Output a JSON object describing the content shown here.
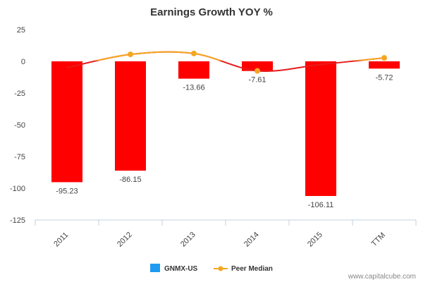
{
  "chart_data": {
    "type": "bar",
    "title": "Earnings Growth YOY %",
    "xlabel": "",
    "ylabel": "",
    "categories": [
      "2011",
      "2012",
      "2013",
      "2014",
      "2015",
      "TTM"
    ],
    "ylim": [
      -125,
      25
    ],
    "yticks": [
      25,
      0,
      -25,
      -50,
      -75,
      -100,
      -125
    ],
    "grid": false,
    "legend_position": "bottom",
    "series": [
      {
        "name": "GNMX-US",
        "kind": "bar",
        "values": [
          -95.23,
          -86.15,
          -13.66,
          -7.61,
          -106.11,
          -5.72
        ],
        "labels": [
          "-95.23",
          "-86.15",
          "-13.66",
          "-7.61",
          "-106.11",
          "-5.72"
        ],
        "legend_color": "#1E9BF0",
        "bar_color": "#FF0000"
      },
      {
        "name": "Peer Median",
        "kind": "line",
        "values": [
          -5,
          5.5,
          6.2,
          -7.5,
          -2.5,
          2.7
        ],
        "color": "#F5A623"
      }
    ],
    "overlay_line_color": "#E61C1C"
  },
  "credit": "www.capitalcube.com"
}
